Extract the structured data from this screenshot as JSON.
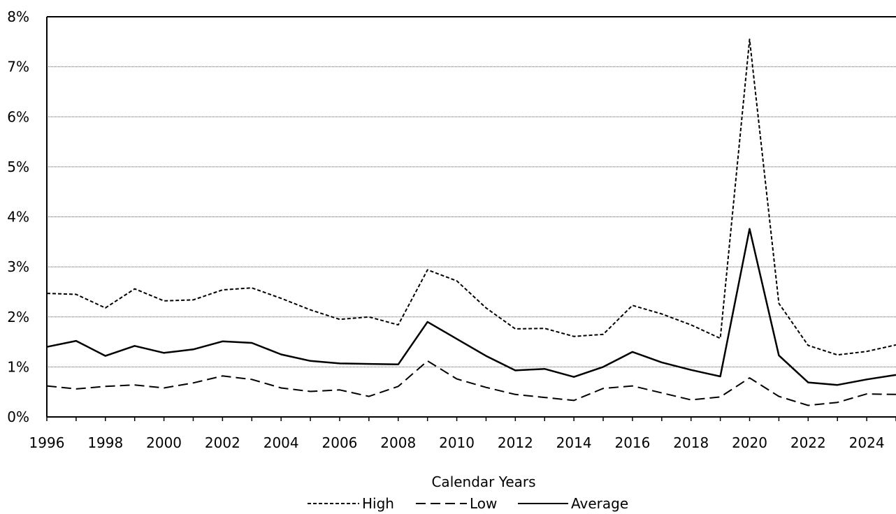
{
  "chart_data": {
    "type": "line",
    "title": "",
    "xlabel": "Calendar Years",
    "ylabel": "",
    "x": [
      1996,
      1997,
      1998,
      1999,
      2000,
      2001,
      2002,
      2003,
      2004,
      2005,
      2006,
      2007,
      2008,
      2009,
      2010,
      2011,
      2012,
      2013,
      2014,
      2015,
      2016,
      2017,
      2018,
      2019,
      2020,
      2021,
      2022,
      2023,
      2024,
      2025
    ],
    "xlim": [
      1996,
      2025
    ],
    "xticks": [
      1996,
      1998,
      2000,
      2002,
      2004,
      2006,
      2008,
      2010,
      2012,
      2014,
      2016,
      2018,
      2020,
      2022,
      2024
    ],
    "ylim": [
      0,
      8
    ],
    "yticks": [
      0,
      1,
      2,
      3,
      4,
      5,
      6,
      7,
      8
    ],
    "ytick_labels": [
      "0%",
      "1%",
      "2%",
      "3%",
      "4%",
      "5%",
      "6%",
      "7%",
      "8%"
    ],
    "grid": "horizontal",
    "legend": "bottom",
    "series": [
      {
        "name": "High",
        "dash": "dotted",
        "values": [
          2.47,
          2.45,
          2.18,
          2.56,
          2.32,
          2.34,
          2.54,
          2.58,
          2.37,
          2.14,
          1.95,
          2.0,
          1.84,
          2.94,
          2.72,
          2.18,
          1.76,
          1.77,
          1.61,
          1.65,
          2.23,
          2.06,
          1.84,
          1.57,
          7.55,
          2.27,
          1.43,
          1.24,
          1.31,
          1.44
        ]
      },
      {
        "name": "Low",
        "dash": "dashed",
        "values": [
          0.62,
          0.56,
          0.61,
          0.64,
          0.58,
          0.68,
          0.82,
          0.75,
          0.58,
          0.51,
          0.54,
          0.41,
          0.61,
          1.12,
          0.76,
          0.59,
          0.45,
          0.39,
          0.33,
          0.57,
          0.62,
          0.48,
          0.34,
          0.4,
          0.78,
          0.41,
          0.23,
          0.29,
          0.46,
          0.45
        ]
      },
      {
        "name": "Average",
        "dash": "solid",
        "values": [
          1.4,
          1.52,
          1.22,
          1.42,
          1.28,
          1.35,
          1.51,
          1.48,
          1.25,
          1.12,
          1.07,
          1.06,
          1.05,
          1.9,
          1.56,
          1.22,
          0.93,
          0.96,
          0.8,
          1.0,
          1.3,
          1.09,
          0.94,
          0.81,
          3.76,
          1.23,
          0.69,
          0.64,
          0.75,
          0.84
        ]
      }
    ]
  }
}
